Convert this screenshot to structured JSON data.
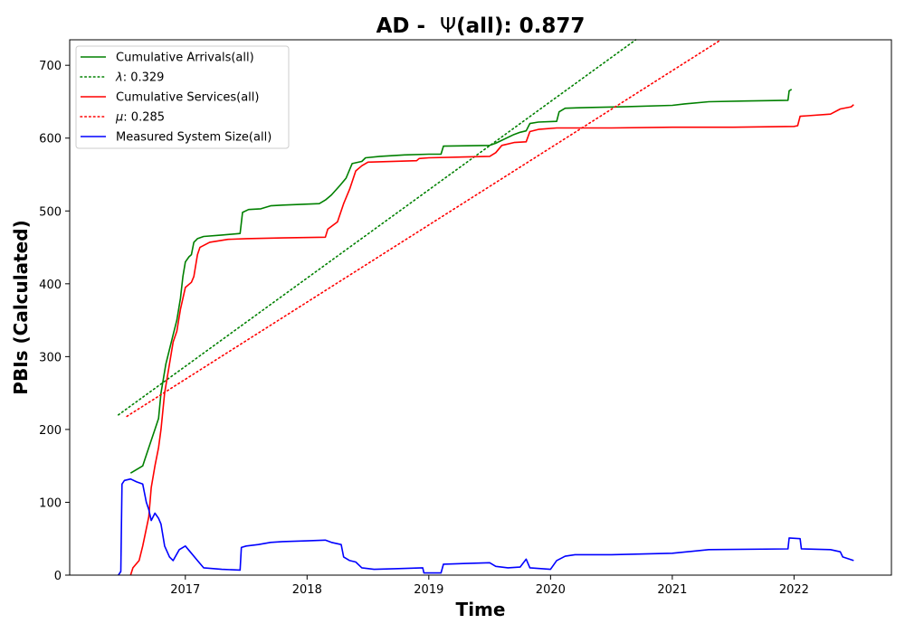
{
  "chart_data": {
    "type": "line",
    "title_prefix": "AD -  ",
    "title_symbol": "Ψ",
    "title_suffix": "(all): 0.877",
    "xlabel": "Time",
    "ylabel": "PBIs (Calculated)",
    "xlim": [
      2016.05,
      2022.8
    ],
    "ylim": [
      0,
      735
    ],
    "x_ticks": [
      2017,
      2018,
      2019,
      2020,
      2021,
      2022
    ],
    "y_ticks": [
      0,
      100,
      200,
      300,
      400,
      500,
      600,
      700
    ],
    "legend_position": "upper-left",
    "series": [
      {
        "name": "Cumulative Arrivals(all)",
        "legend_symbol": "",
        "legend_value": "",
        "color": "#008000",
        "style": "solid",
        "points": [
          [
            2016.55,
            140
          ],
          [
            2016.6,
            145
          ],
          [
            2016.65,
            150
          ],
          [
            2016.68,
            165
          ],
          [
            2016.72,
            185
          ],
          [
            2016.75,
            200
          ],
          [
            2016.78,
            215
          ],
          [
            2016.8,
            250
          ],
          [
            2016.84,
            290
          ],
          [
            2016.87,
            310
          ],
          [
            2016.9,
            330
          ],
          [
            2016.93,
            350
          ],
          [
            2016.96,
            380
          ],
          [
            2016.98,
            410
          ],
          [
            2017.0,
            430
          ],
          [
            2017.03,
            437
          ],
          [
            2017.05,
            440
          ],
          [
            2017.07,
            457
          ],
          [
            2017.1,
            462
          ],
          [
            2017.15,
            465
          ],
          [
            2017.3,
            467
          ],
          [
            2017.45,
            469
          ],
          [
            2017.47,
            498
          ],
          [
            2017.52,
            502
          ],
          [
            2017.62,
            503
          ],
          [
            2017.7,
            507
          ],
          [
            2017.8,
            508
          ],
          [
            2018.1,
            510
          ],
          [
            2018.15,
            515
          ],
          [
            2018.2,
            522
          ],
          [
            2018.27,
            535
          ],
          [
            2018.32,
            545
          ],
          [
            2018.37,
            565
          ],
          [
            2018.45,
            568
          ],
          [
            2018.48,
            573
          ],
          [
            2018.6,
            575
          ],
          [
            2018.8,
            577
          ],
          [
            2019.0,
            578
          ],
          [
            2019.1,
            578
          ],
          [
            2019.12,
            589
          ],
          [
            2019.5,
            590
          ],
          [
            2019.55,
            593
          ],
          [
            2019.7,
            605
          ],
          [
            2019.75,
            608
          ],
          [
            2019.8,
            610
          ],
          [
            2019.83,
            620
          ],
          [
            2019.9,
            622
          ],
          [
            2020.05,
            623
          ],
          [
            2020.07,
            636
          ],
          [
            2020.12,
            641
          ],
          [
            2020.3,
            642
          ],
          [
            2020.6,
            643
          ],
          [
            2021.0,
            645
          ],
          [
            2021.1,
            647
          ],
          [
            2021.3,
            650
          ],
          [
            2021.6,
            651
          ],
          [
            2021.95,
            652
          ],
          [
            2021.96,
            665
          ],
          [
            2021.98,
            667
          ]
        ]
      },
      {
        "name": "",
        "legend_symbol": "λ",
        "legend_value": ": 0.329",
        "color": "#008000",
        "style": "dotted",
        "points": [
          [
            2016.45,
            220
          ],
          [
            2020.7,
            735
          ]
        ]
      },
      {
        "name": "Cumulative Services(all)",
        "legend_symbol": "",
        "legend_value": "",
        "color": "#ff0000",
        "style": "solid",
        "points": [
          [
            2016.55,
            0
          ],
          [
            2016.57,
            10
          ],
          [
            2016.62,
            20
          ],
          [
            2016.65,
            40
          ],
          [
            2016.7,
            80
          ],
          [
            2016.72,
            120
          ],
          [
            2016.75,
            150
          ],
          [
            2016.78,
            175
          ],
          [
            2016.8,
            200
          ],
          [
            2016.83,
            250
          ],
          [
            2016.87,
            290
          ],
          [
            2016.9,
            320
          ],
          [
            2016.93,
            335
          ],
          [
            2016.96,
            365
          ],
          [
            2016.98,
            380
          ],
          [
            2017.0,
            395
          ],
          [
            2017.05,
            402
          ],
          [
            2017.07,
            410
          ],
          [
            2017.1,
            440
          ],
          [
            2017.12,
            450
          ],
          [
            2017.2,
            457
          ],
          [
            2017.35,
            461
          ],
          [
            2017.5,
            462
          ],
          [
            2017.8,
            463
          ],
          [
            2018.15,
            464
          ],
          [
            2018.17,
            475
          ],
          [
            2018.25,
            485
          ],
          [
            2018.3,
            510
          ],
          [
            2018.35,
            530
          ],
          [
            2018.4,
            555
          ],
          [
            2018.45,
            562
          ],
          [
            2018.5,
            567
          ],
          [
            2018.9,
            569
          ],
          [
            2018.92,
            572
          ],
          [
            2019.0,
            573
          ],
          [
            2019.5,
            575
          ],
          [
            2019.55,
            580
          ],
          [
            2019.6,
            590
          ],
          [
            2019.7,
            594
          ],
          [
            2019.8,
            595
          ],
          [
            2019.83,
            609
          ],
          [
            2019.9,
            612
          ],
          [
            2020.05,
            614
          ],
          [
            2020.5,
            614
          ],
          [
            2021.0,
            615
          ],
          [
            2021.5,
            615
          ],
          [
            2022.0,
            616
          ],
          [
            2022.03,
            617
          ],
          [
            2022.05,
            630
          ],
          [
            2022.3,
            633
          ],
          [
            2022.38,
            640
          ],
          [
            2022.47,
            643
          ],
          [
            2022.49,
            646
          ]
        ]
      },
      {
        "name": "",
        "legend_symbol": "μ",
        "legend_value": ": 0.285",
        "color": "#ff0000",
        "style": "dotted",
        "points": [
          [
            2016.52,
            218
          ],
          [
            2021.4,
            735
          ]
        ]
      },
      {
        "name": "Measured System Size(all)",
        "legend_symbol": "",
        "legend_value": "",
        "color": "#0000ff",
        "style": "solid",
        "points": [
          [
            2016.45,
            0
          ],
          [
            2016.47,
            5
          ],
          [
            2016.48,
            125
          ],
          [
            2016.5,
            130
          ],
          [
            2016.55,
            132
          ],
          [
            2016.6,
            128
          ],
          [
            2016.65,
            125
          ],
          [
            2016.68,
            100
          ],
          [
            2016.7,
            90
          ],
          [
            2016.72,
            75
          ],
          [
            2016.75,
            85
          ],
          [
            2016.78,
            78
          ],
          [
            2016.8,
            70
          ],
          [
            2016.83,
            40
          ],
          [
            2016.87,
            25
          ],
          [
            2016.9,
            20
          ],
          [
            2016.95,
            35
          ],
          [
            2017.0,
            40
          ],
          [
            2017.05,
            30
          ],
          [
            2017.1,
            20
          ],
          [
            2017.15,
            10
          ],
          [
            2017.3,
            8
          ],
          [
            2017.45,
            7
          ],
          [
            2017.46,
            38
          ],
          [
            2017.5,
            40
          ],
          [
            2017.6,
            42
          ],
          [
            2017.7,
            45
          ],
          [
            2017.8,
            46
          ],
          [
            2018.0,
            47
          ],
          [
            2018.15,
            48
          ],
          [
            2018.2,
            45
          ],
          [
            2018.28,
            42
          ],
          [
            2018.3,
            25
          ],
          [
            2018.35,
            20
          ],
          [
            2018.4,
            18
          ],
          [
            2018.45,
            10
          ],
          [
            2018.55,
            8
          ],
          [
            2018.75,
            9
          ],
          [
            2018.95,
            10
          ],
          [
            2018.96,
            3
          ],
          [
            2019.1,
            3
          ],
          [
            2019.12,
            15
          ],
          [
            2019.5,
            17
          ],
          [
            2019.55,
            12
          ],
          [
            2019.65,
            10
          ],
          [
            2019.75,
            11
          ],
          [
            2019.8,
            22
          ],
          [
            2019.83,
            10
          ],
          [
            2020.0,
            8
          ],
          [
            2020.05,
            20
          ],
          [
            2020.12,
            26
          ],
          [
            2020.2,
            28
          ],
          [
            2020.5,
            28
          ],
          [
            2021.0,
            30
          ],
          [
            2021.3,
            35
          ],
          [
            2021.95,
            36
          ],
          [
            2021.96,
            51
          ],
          [
            2022.05,
            50
          ],
          [
            2022.06,
            36
          ],
          [
            2022.3,
            35
          ],
          [
            2022.38,
            32
          ],
          [
            2022.4,
            25
          ],
          [
            2022.49,
            20
          ]
        ]
      }
    ]
  }
}
